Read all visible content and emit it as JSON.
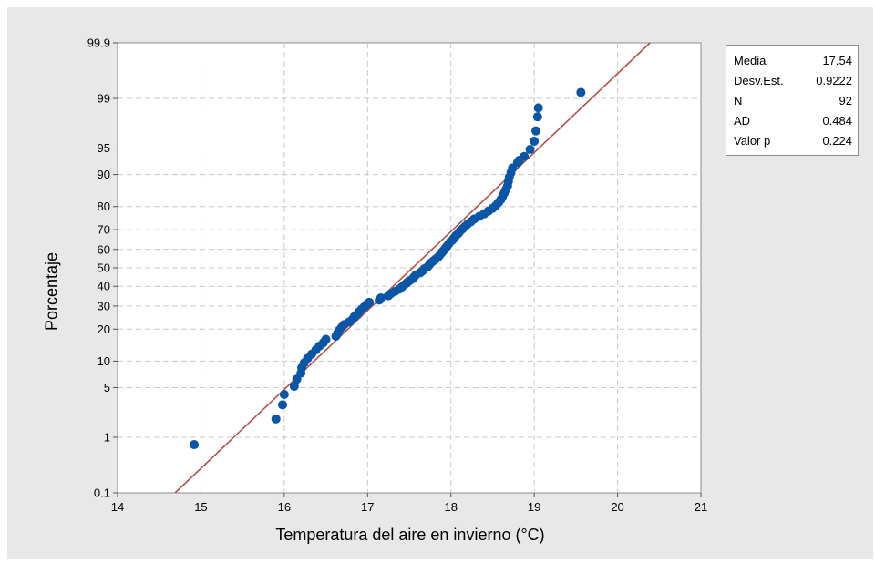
{
  "chart_data": {
    "type": "scatter",
    "scale_y": "normal probability",
    "xlabel": "Temperatura del aire en invierno (°C)",
    "ylabel": "Porcentaje",
    "xlim": [
      14,
      21
    ],
    "x_ticks": [
      "14",
      "15",
      "16",
      "17",
      "18",
      "19",
      "20",
      "21"
    ],
    "y_ticks": [
      "0.1",
      "1",
      "5",
      "10",
      "20",
      "30",
      "40",
      "50",
      "60",
      "70",
      "80",
      "90",
      "95",
      "99",
      "99.9"
    ],
    "grid": true,
    "fit_line": {
      "mean": 17.54,
      "sd": 0.9222,
      "color": "#b5504a"
    },
    "marker_color": "#0a56a6",
    "points": [
      {
        "x": 14.92,
        "y": 0.76
      },
      {
        "x": 15.9,
        "y": 1.9
      },
      {
        "x": 15.98,
        "y": 3.0
      },
      {
        "x": 16.0,
        "y": 4.1
      },
      {
        "x": 16.12,
        "y": 5.2
      },
      {
        "x": 16.15,
        "y": 6.3
      },
      {
        "x": 16.2,
        "y": 7.4
      },
      {
        "x": 16.21,
        "y": 8.5
      },
      {
        "x": 16.24,
        "y": 9.6
      },
      {
        "x": 16.28,
        "y": 10.7
      },
      {
        "x": 16.33,
        "y": 11.8
      },
      {
        "x": 16.38,
        "y": 13.0
      },
      {
        "x": 16.42,
        "y": 14.1
      },
      {
        "x": 16.47,
        "y": 15.2
      },
      {
        "x": 16.5,
        "y": 16.3
      },
      {
        "x": 16.62,
        "y": 17.4
      },
      {
        "x": 16.64,
        "y": 18.5
      },
      {
        "x": 16.66,
        "y": 19.6
      },
      {
        "x": 16.69,
        "y": 20.7
      },
      {
        "x": 16.72,
        "y": 21.8
      },
      {
        "x": 16.78,
        "y": 22.9
      },
      {
        "x": 16.82,
        "y": 24.0
      },
      {
        "x": 16.84,
        "y": 25.1
      },
      {
        "x": 16.88,
        "y": 26.3
      },
      {
        "x": 16.9,
        "y": 27.4
      },
      {
        "x": 16.93,
        "y": 28.5
      },
      {
        "x": 16.96,
        "y": 29.6
      },
      {
        "x": 16.99,
        "y": 30.7
      },
      {
        "x": 17.02,
        "y": 31.8
      },
      {
        "x": 17.14,
        "y": 32.9
      },
      {
        "x": 17.16,
        "y": 34.0
      },
      {
        "x": 17.25,
        "y": 35.1
      },
      {
        "x": 17.28,
        "y": 36.2
      },
      {
        "x": 17.33,
        "y": 37.3
      },
      {
        "x": 17.38,
        "y": 38.5
      },
      {
        "x": 17.41,
        "y": 39.6
      },
      {
        "x": 17.44,
        "y": 40.7
      },
      {
        "x": 17.47,
        "y": 41.8
      },
      {
        "x": 17.5,
        "y": 42.9
      },
      {
        "x": 17.54,
        "y": 44.0
      },
      {
        "x": 17.56,
        "y": 45.1
      },
      {
        "x": 17.58,
        "y": 46.2
      },
      {
        "x": 17.63,
        "y": 47.3
      },
      {
        "x": 17.66,
        "y": 48.4
      },
      {
        "x": 17.68,
        "y": 49.5
      },
      {
        "x": 17.72,
        "y": 50.5
      },
      {
        "x": 17.74,
        "y": 51.6
      },
      {
        "x": 17.76,
        "y": 52.7
      },
      {
        "x": 17.79,
        "y": 53.8
      },
      {
        "x": 17.82,
        "y": 54.9
      },
      {
        "x": 17.85,
        "y": 56.0
      },
      {
        "x": 17.87,
        "y": 57.1
      },
      {
        "x": 17.89,
        "y": 58.2
      },
      {
        "x": 17.91,
        "y": 59.3
      },
      {
        "x": 17.93,
        "y": 60.4
      },
      {
        "x": 17.95,
        "y": 61.5
      },
      {
        "x": 17.97,
        "y": 62.7
      },
      {
        "x": 17.99,
        "y": 63.8
      },
      {
        "x": 18.02,
        "y": 64.9
      },
      {
        "x": 18.04,
        "y": 66.0
      },
      {
        "x": 18.06,
        "y": 67.1
      },
      {
        "x": 18.09,
        "y": 68.2
      },
      {
        "x": 18.11,
        "y": 69.3
      },
      {
        "x": 18.14,
        "y": 70.4
      },
      {
        "x": 18.17,
        "y": 71.5
      },
      {
        "x": 18.2,
        "y": 72.6
      },
      {
        "x": 18.24,
        "y": 73.7
      },
      {
        "x": 18.28,
        "y": 74.9
      },
      {
        "x": 18.34,
        "y": 76.0
      },
      {
        "x": 18.4,
        "y": 77.1
      },
      {
        "x": 18.45,
        "y": 78.2
      },
      {
        "x": 18.5,
        "y": 79.3
      },
      {
        "x": 18.54,
        "y": 80.4
      },
      {
        "x": 18.57,
        "y": 81.5
      },
      {
        "x": 18.6,
        "y": 82.6
      },
      {
        "x": 18.62,
        "y": 83.7
      },
      {
        "x": 18.64,
        "y": 84.8
      },
      {
        "x": 18.66,
        "y": 85.9
      },
      {
        "x": 18.68,
        "y": 87.0
      },
      {
        "x": 18.69,
        "y": 88.2
      },
      {
        "x": 18.7,
        "y": 89.3
      },
      {
        "x": 18.72,
        "y": 90.4
      },
      {
        "x": 18.74,
        "y": 91.5
      },
      {
        "x": 18.8,
        "y": 92.6
      },
      {
        "x": 18.88,
        "y": 93.7
      },
      {
        "x": 18.95,
        "y": 94.8
      },
      {
        "x": 19.0,
        "y": 95.9
      },
      {
        "x": 19.02,
        "y": 97.0
      },
      {
        "x": 19.04,
        "y": 98.1
      },
      {
        "x": 19.05,
        "y": 98.6
      },
      {
        "x": 19.56,
        "y": 99.2
      },
      {
        "x": 18.82,
        "y": 93.0
      }
    ]
  },
  "stats": [
    {
      "key": "Media",
      "value": "17.54"
    },
    {
      "key": "Desv.Est.",
      "value": "0.9222"
    },
    {
      "key": "N",
      "value": "92"
    },
    {
      "key": "AD",
      "value": "0.484"
    },
    {
      "key": "Valor p",
      "value": "0.224"
    }
  ]
}
